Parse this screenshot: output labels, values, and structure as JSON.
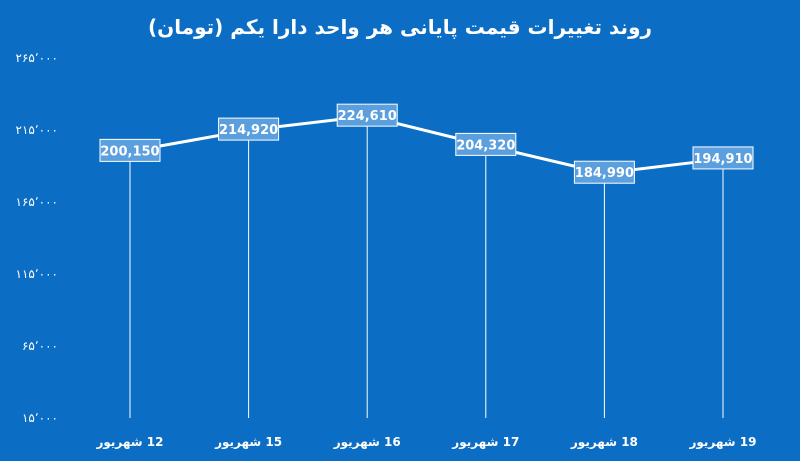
{
  "chart_data": {
    "type": "line",
    "title": "روند تغییرات قیمت پایانی هر واحد دارا یکم (تومان)",
    "categories": [
      "12 شهریور",
      "15 شهریور",
      "16 شهریور",
      "17 شهریور",
      "18 شهریور",
      "19 شهریور"
    ],
    "values": [
      200150,
      214920,
      224610,
      204320,
      184990,
      194910
    ],
    "data_labels": [
      "200,150",
      "214,920",
      "224,610",
      "204,320",
      "184,990",
      "194,910"
    ],
    "ylim": [
      15000,
      265000
    ],
    "yticks": [
      265000,
      215000,
      165000,
      115000,
      65000,
      15000
    ],
    "ytick_labels": [
      "۲۶۵٬۰۰۰",
      "۲۱۵٬۰۰۰",
      "۱۶۵٬۰۰۰",
      "۱۱۵٬۰۰۰",
      "۶۵٬۰۰۰",
      "۱۵٬۰۰۰"
    ],
    "xlabel": "",
    "ylabel": "",
    "grid": false,
    "legend": "none",
    "colors": {
      "background": "#0b6dc4",
      "line": "#ffffff",
      "label_box": "#5b9fde"
    }
  }
}
